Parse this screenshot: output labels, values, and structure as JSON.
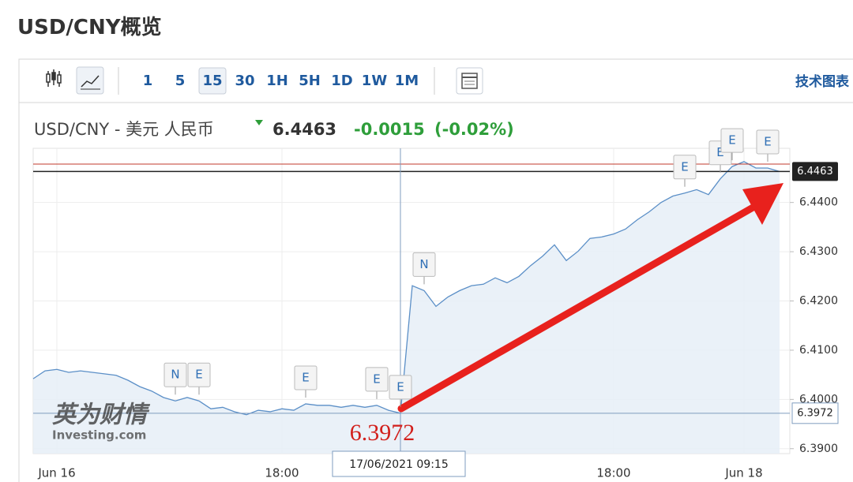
{
  "page_title": "USD/CNY概览",
  "toolbar": {
    "intervals": [
      "1",
      "5",
      "15",
      "30",
      "1H",
      "5H",
      "1D",
      "1W",
      "1M"
    ],
    "active_interval": 2,
    "link": "技术图表"
  },
  "watermark": [
    "英为财情",
    "Investing.com"
  ],
  "chart_data": {
    "type": "line",
    "title": "USD/CNY - 美元 人民币",
    "price": 6.4463,
    "change": -0.0015,
    "change_percent": "(-0.02%)",
    "prev_close": 6.4478,
    "color": "#5b8fc7",
    "grid": true,
    "ylim": [
      6.389,
      6.451
    ],
    "yticks": [
      {
        "value": 6.39,
        "label": "6.3900"
      },
      {
        "value": 6.4,
        "label": "6.4000"
      },
      {
        "value": 6.41,
        "label": "6.4100"
      },
      {
        "value": 6.42,
        "label": "6.4200"
      },
      {
        "value": 6.43,
        "label": "6.4300"
      },
      {
        "value": 6.44,
        "label": "6.4400"
      }
    ],
    "categories": [
      null,
      null,
      "Jun 16",
      null,
      null,
      null,
      null,
      null,
      null,
      null,
      null,
      null,
      null,
      null,
      null,
      null,
      null,
      null,
      null,
      null,
      null,
      "18:00",
      null,
      null,
      null,
      null,
      null,
      null,
      null,
      null,
      null,
      null,
      null,
      null,
      null,
      null,
      null,
      null,
      null,
      null,
      null,
      null,
      null,
      null,
      null,
      null,
      null,
      null,
      null,
      "18:00",
      null,
      null,
      null,
      null,
      null,
      null,
      null,
      null,
      null,
      null,
      "Jun 18",
      null,
      null,
      null
    ],
    "values": [
      6.4042,
      6.4058,
      6.4061,
      6.4055,
      6.4058,
      6.4055,
      6.4052,
      6.4049,
      6.4039,
      6.4026,
      6.4017,
      6.4004,
      6.3997,
      6.4004,
      6.3997,
      6.3981,
      6.3984,
      6.3975,
      6.3969,
      6.3978,
      6.3975,
      6.3981,
      6.3978,
      6.3991,
      6.3988,
      6.3988,
      6.3984,
      6.3988,
      6.3984,
      6.3988,
      6.3978,
      6.3972,
      6.4231,
      6.4221,
      6.4189,
      6.4208,
      6.4221,
      6.4231,
      6.4234,
      6.4247,
      6.4237,
      6.425,
      6.4272,
      6.4291,
      6.4314,
      6.4282,
      6.4301,
      6.4327,
      6.433,
      6.4336,
      6.4346,
      6.4365,
      6.4381,
      6.44,
      6.4413,
      6.4419,
      6.4426,
      6.4416,
      6.4448,
      6.4473,
      6.4483,
      6.447,
      6.447,
      6.4463
    ],
    "crosshair": {
      "index": 31,
      "label": "17/06/2021 09:15"
    },
    "events": [
      {
        "index": 12,
        "label": "N"
      },
      {
        "index": 14,
        "label": "E"
      },
      {
        "index": 23,
        "label": "E"
      },
      {
        "index": 29,
        "label": "E"
      },
      {
        "index": 31,
        "label": "E"
      },
      {
        "index": 33,
        "label": "N"
      },
      {
        "index": 55,
        "label": "E"
      },
      {
        "index": 58,
        "label": "E"
      },
      {
        "index": 59,
        "label": "E"
      },
      {
        "index": 62,
        "label": "E"
      }
    ]
  }
}
